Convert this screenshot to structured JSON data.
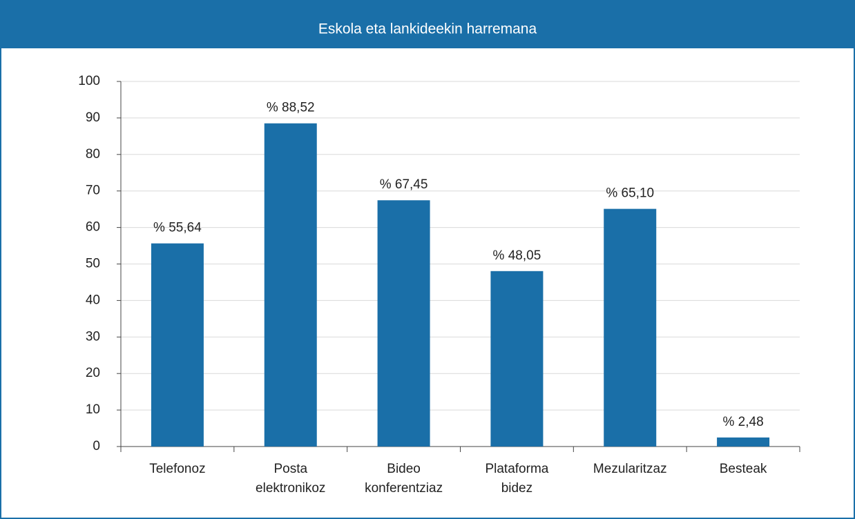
{
  "chart_data": {
    "type": "bar",
    "title": "Eskola eta lankideekin harremana",
    "categories": [
      "Telefonoz",
      "Posta elektronikoz",
      "Bideo konferentziaz",
      "Plataforma bidez",
      "Mezularitzaz",
      "Besteak"
    ],
    "values": [
      55.64,
      88.52,
      67.45,
      48.05,
      65.1,
      2.48
    ],
    "value_labels": [
      "% 55,64",
      "% 88,52",
      "% 67,45",
      "% 48,05",
      "% 65,10",
      "% 2,48"
    ],
    "color": "#1a6fa8",
    "ylim": [
      0,
      100
    ],
    "yticks": [
      0,
      10,
      20,
      30,
      40,
      50,
      60,
      70,
      80,
      90,
      100
    ],
    "grid": true
  }
}
